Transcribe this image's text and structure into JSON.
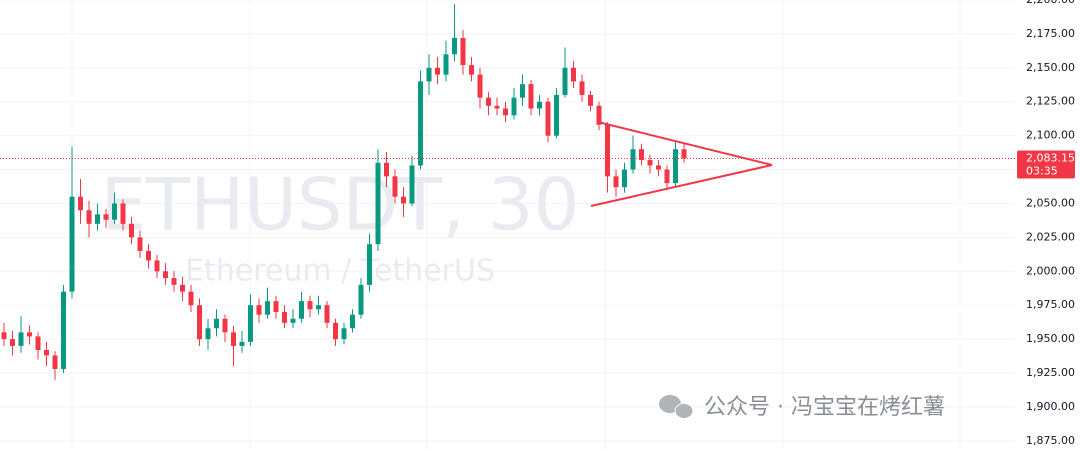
{
  "chart_data": {
    "type": "candlestick",
    "watermark_title": "ETHUSDT, 30",
    "watermark_subtitle": "Ethereum / TetherUS",
    "footer": "公众号 · 冯宝宝在烤红薯",
    "up_color": "#089981",
    "down_color": "#f23645",
    "open": [
      1955,
      1950,
      1945,
      1955,
      1952,
      1942,
      1938,
      1928,
      1985,
      2055,
      2045,
      2035,
      2042,
      2038,
      2050,
      2035,
      2025,
      2015,
      2008,
      2000,
      1995,
      1990,
      1985,
      1975,
      1950,
      1958,
      1965,
      1955,
      1945,
      1948,
      1975,
      1968,
      1978,
      1970,
      1962,
      1965,
      1978,
      1972,
      1975,
      1962,
      1950,
      1958,
      1968,
      1990,
      2020,
      2080,
      2070,
      2055,
      2050,
      2078,
      2140,
      2150,
      2145,
      2160,
      2172,
      2152,
      2145,
      2128,
      2122,
      2120,
      2115,
      2128,
      2138,
      2120,
      2125,
      2100,
      2130,
      2150,
      2140,
      2130,
      2122,
      2108,
      2070,
      2062,
      2075,
      2090,
      2082,
      2078,
      2075,
      2065,
      2090
    ],
    "high": [
      1962,
      1956,
      1967,
      1960,
      1955,
      1948,
      1941,
      1990,
      2092,
      2068,
      2052,
      2050,
      2046,
      2058,
      2053,
      2040,
      2030,
      2020,
      2012,
      2006,
      2000,
      1996,
      1990,
      1980,
      1965,
      1972,
      1968,
      1960,
      1956,
      1983,
      1980,
      1988,
      1982,
      1975,
      1972,
      1985,
      1982,
      1982,
      1978,
      1965,
      1962,
      1972,
      1995,
      2028,
      2090,
      2088,
      2075,
      2062,
      2085,
      2148,
      2160,
      2158,
      2170,
      2197,
      2178,
      2158,
      2150,
      2132,
      2128,
      2125,
      2135,
      2145,
      2141,
      2130,
      2128,
      2135,
      2165,
      2155,
      2145,
      2133,
      2125,
      2110,
      2075,
      2080,
      2100,
      2094,
      2086,
      2082,
      2078,
      2096,
      2094
    ],
    "low": [
      1945,
      1938,
      1940,
      1946,
      1935,
      1930,
      1920,
      1925,
      1980,
      2035,
      2025,
      2030,
      2032,
      2035,
      2030,
      2020,
      2010,
      2002,
      1995,
      1990,
      1985,
      1978,
      1970,
      1945,
      1942,
      1952,
      1948,
      1930,
      1940,
      1945,
      1962,
      1965,
      1965,
      1958,
      1958,
      1962,
      1966,
      1968,
      1958,
      1945,
      1946,
      1955,
      1965,
      1985,
      2015,
      2062,
      2050,
      2040,
      2048,
      2075,
      2130,
      2138,
      2140,
      2155,
      2145,
      2140,
      2120,
      2115,
      2115,
      2110,
      2112,
      2122,
      2115,
      2115,
      2095,
      2098,
      2128,
      2135,
      2125,
      2118,
      2104,
      2058,
      2055,
      2058,
      2072,
      2078,
      2072,
      2070,
      2060,
      2062,
      2080
    ],
    "close": [
      1950,
      1945,
      1955,
      1952,
      1942,
      1938,
      1928,
      1985,
      2055,
      2045,
      2035,
      2042,
      2038,
      2050,
      2035,
      2025,
      2015,
      2008,
      2000,
      1995,
      1990,
      1985,
      1975,
      1950,
      1958,
      1965,
      1955,
      1945,
      1948,
      1975,
      1968,
      1978,
      1970,
      1962,
      1965,
      1978,
      1972,
      1975,
      1962,
      1950,
      1958,
      1968,
      1990,
      2020,
      2080,
      2070,
      2055,
      2050,
      2078,
      2140,
      2150,
      2145,
      2160,
      2172,
      2152,
      2145,
      2128,
      2122,
      2120,
      2115,
      2128,
      2138,
      2120,
      2125,
      2100,
      2130,
      2150,
      2140,
      2130,
      2122,
      2108,
      2070,
      2062,
      2075,
      2090,
      2082,
      2078,
      2075,
      2065,
      2090,
      2083.15
    ],
    "ylim": [
      1869,
      2200
    ],
    "yticks": [
      {
        "value": 1875,
        "label": "1,875.00"
      },
      {
        "value": 1900,
        "label": "1,900.00"
      },
      {
        "value": 1925,
        "label": "1,925.00"
      },
      {
        "value": 1950,
        "label": "1,950.00"
      },
      {
        "value": 1975,
        "label": "1,975.00"
      },
      {
        "value": 2000,
        "label": "2,000.00"
      },
      {
        "value": 2025,
        "label": "2,025.00"
      },
      {
        "value": 2050,
        "label": "2,050.00"
      },
      {
        "value": 2075,
        "label": "2,075.00"
      },
      {
        "value": 2100,
        "label": "2,100.00"
      },
      {
        "value": 2125,
        "label": "2,125.00"
      },
      {
        "value": 2150,
        "label": "2,150.00"
      },
      {
        "value": 2175,
        "label": "2,175.00"
      },
      {
        "value": 2200,
        "label": "2,200.00"
      }
    ],
    "current_price": {
      "value": 2083.15,
      "label": "2,083.15"
    },
    "countdown": "03:35",
    "grid": true
  }
}
